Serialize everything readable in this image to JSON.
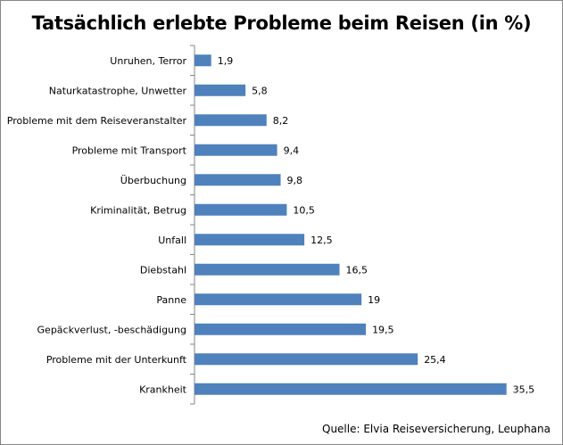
{
  "chart_data": {
    "type": "bar",
    "orientation": "horizontal",
    "title": "Tatsächlich erlebte Probleme beim Reisen (in %)",
    "categories": [
      "Unruhen, Terror",
      "Naturkatastrophe, Unwetter",
      "Probleme mit dem Reiseveranstalter",
      "Probleme mit Transport",
      "Überbuchung",
      "Kriminalität, Betrug",
      "Unfall",
      "Diebstahl",
      "Panne",
      "Gepäckverlust, -beschädigung",
      "Probleme mit der Unterkunft",
      "Krankheit"
    ],
    "values": [
      1.9,
      5.8,
      8.2,
      9.4,
      9.8,
      10.5,
      12.5,
      16.5,
      19,
      19.5,
      25.4,
      35.5
    ],
    "value_labels": [
      "1,9",
      "5,8",
      "8,2",
      "9,4",
      "9,8",
      "10,5",
      "12,5",
      "16,5",
      "19",
      "19,5",
      "25,4",
      "35,5"
    ],
    "xlim": [
      0,
      40
    ],
    "grid": false,
    "legend": "none",
    "bar_color": "#4f81bd",
    "source": "Quelle: Elvia Reiseversicherung, Leuphana"
  }
}
